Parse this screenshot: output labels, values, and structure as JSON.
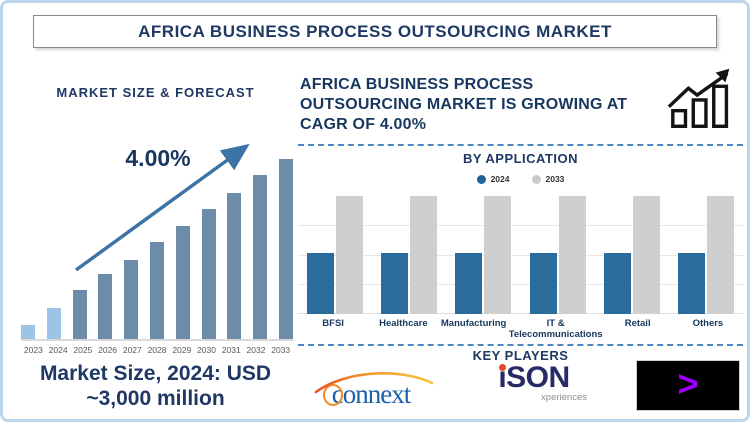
{
  "title": "AFRICA BUSINESS PROCESS OUTSOURCING MARKET",
  "left_panel": {
    "heading": "MARKET SIZE & FORECAST",
    "cagr_label": "4.00%",
    "market_size_line1": "Market Size, 2024: USD",
    "market_size_line2": "~3,000 million"
  },
  "right_panel": {
    "heading_lines": [
      "AFRICA BUSINESS PROCESS",
      "OUTSOURCING MARKET IS GROWING AT",
      "CAGR OF 4.00%"
    ],
    "key_players": {
      "heading": "KEY PLAYERS",
      "players": [
        {
          "name": "Connext",
          "logo_text": "connext"
        },
        {
          "name": "iSON Xperiences",
          "logo_text": "iSON",
          "logo_subtext": "xperiences"
        },
        {
          "name": "Accenture",
          "logo_symbol": ">"
        }
      ]
    }
  },
  "chart_data": [
    {
      "type": "bar",
      "title": "MARKET SIZE & FORECAST",
      "categories": [
        "2023",
        "2024",
        "2025",
        "2026",
        "2027",
        "2028",
        "2029",
        "2030",
        "2031",
        "2032",
        "2033"
      ],
      "values": [
        8,
        17,
        27,
        36,
        44,
        54,
        63,
        72,
        81,
        91,
        100
      ],
      "value_note": "relative bar heights, 2033 = 100; no y-axis shown; 2024 value stated as USD ~3,000 million, CAGR 4.00%",
      "historical_years": [
        "2023",
        "2024"
      ],
      "bar_color_historical": "#9DC3E6",
      "bar_color_forecast": "#6C8CA9",
      "annotation": "4.00%",
      "xlabel": "",
      "ylabel": "",
      "grid": false,
      "legend_position": "none"
    },
    {
      "type": "bar",
      "title": "BY APPLICATION",
      "categories": [
        "BFSI",
        "Healthcare",
        "Manufacturing",
        "IT & Telecommunications",
        "Retail",
        "Others"
      ],
      "series": [
        {
          "name": "2024",
          "values": [
            52,
            52,
            52,
            52,
            52,
            52
          ],
          "color": "#2A6C9B"
        },
        {
          "name": "2033",
          "values": [
            100,
            100,
            100,
            100,
            100,
            100
          ],
          "color": "#CFCFCF"
        }
      ],
      "value_note": "relative bar heights, no y-axis labels shown",
      "xlabel": "",
      "ylabel": "",
      "grid": true,
      "legend_position": "top"
    }
  ],
  "colors": {
    "navy_text": "#1F3864",
    "heading_navy": "#17375E",
    "arrow_blue": "#3D74A6",
    "dashed_line": "#4C86BF",
    "page_border": "#BDD7EE",
    "year_label_gray": "#595959",
    "legend_2024_dot": "#1F6397",
    "legend_2033_dot": "#C9C9C9",
    "connext_blue": "#1E5FA9",
    "connext_orange": "#F49D2E",
    "ison_navy": "#262A66",
    "ison_red": "#E8472B",
    "accenture_purple": "#A100FF",
    "accenture_bg": "#000000"
  }
}
